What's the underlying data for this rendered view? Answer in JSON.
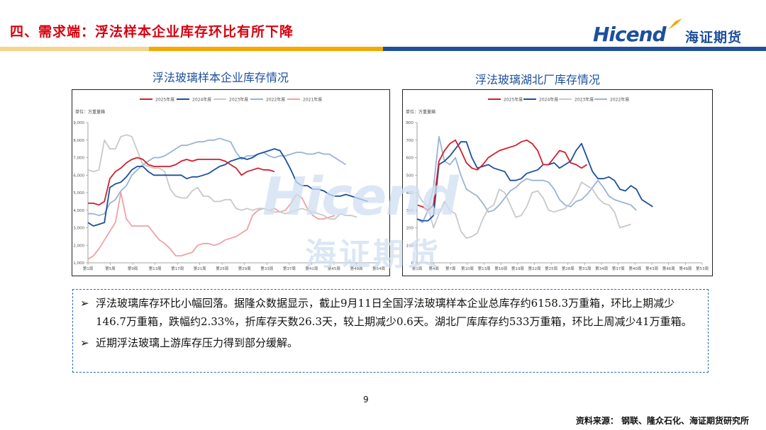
{
  "header": {
    "title": "四、需求端：浮法样本企业库存环比有所下降",
    "logo_en": "Hicend",
    "logo_cn": "海证期货"
  },
  "colors": {
    "brand_blue": "#1d4f9c",
    "title_red": "#d7000f",
    "accent_orange": "#f5a800"
  },
  "watermark": {
    "en": "Hicend",
    "cn": "海证期货"
  },
  "chart_data": [
    {
      "type": "line",
      "title": "浮法玻璃样本企业库存情况",
      "unit": "单位：万重量箱",
      "ylim": [
        1000,
        9000
      ],
      "yticks": [
        "1,000",
        "2,000",
        "3,000",
        "4,000",
        "5,000",
        "6,000",
        "7,000",
        "8,000",
        "9,000"
      ],
      "xticks": [
        "第1周",
        "第5周",
        "第9周",
        "第13周",
        "第17周",
        "第21周",
        "第25周",
        "第29周",
        "第33周",
        "第37周",
        "第41周",
        "第45周",
        "第49周",
        "第54周"
      ],
      "series": [
        {
          "name": "2025年度",
          "color": "#d11f2c",
          "values": [
            4400,
            4400,
            4300,
            4500,
            5800,
            6200,
            6400,
            6700,
            6900,
            7000,
            6900,
            6600,
            6500,
            6500,
            6500,
            6500,
            6600,
            6800,
            6900,
            6800,
            6900,
            6900,
            6900,
            6900,
            6900,
            6800,
            6600,
            6400,
            6000,
            6200,
            6300,
            6400,
            6300,
            6300,
            6200
          ]
        },
        {
          "name": "2024年度",
          "color": "#1d4f9c",
          "values": [
            3300,
            3100,
            3200,
            3300,
            5300,
            5500,
            5600,
            5900,
            6300,
            6500,
            6500,
            6200,
            6000,
            6000,
            6000,
            6000,
            6000,
            6000,
            5800,
            5900,
            5900,
            6000,
            6100,
            6300,
            6500,
            6600,
            6800,
            6900,
            7000,
            6900,
            7000,
            7200,
            7300,
            7400,
            7500,
            7400,
            6900,
            6300,
            5600,
            5400,
            5400,
            5200,
            5200,
            5100,
            4900,
            4800,
            4800,
            4900,
            4800,
            4700,
            4600,
            4500
          ]
        },
        {
          "name": "2023年度",
          "color": "#c8c8c8",
          "values": [
            6300,
            6200,
            6300,
            8000,
            7500,
            7500,
            8200,
            8300,
            8200,
            7400,
            6600,
            6500,
            6400,
            6400,
            6200,
            5200,
            4800,
            4700,
            4700,
            5100,
            5300,
            4800,
            4800,
            4500,
            4500,
            4600,
            4600,
            4100,
            4000,
            4100,
            4000,
            4100,
            4100,
            4000,
            3900,
            3900,
            3800,
            3900,
            4000,
            4100,
            4000,
            3900,
            3800,
            3700,
            3500,
            3500,
            3800,
            3700,
            3700,
            3600
          ]
        },
        {
          "name": "2022年度",
          "color": "#9ab3d6",
          "values": [
            3800,
            3800,
            3700,
            3800,
            4400,
            4600,
            5100,
            5400,
            6000,
            6300,
            6600,
            6800,
            7000,
            7000,
            7100,
            7300,
            7500,
            7700,
            7700,
            7800,
            7900,
            7900,
            8000,
            8000,
            8100,
            8000,
            7900,
            7300,
            6900,
            7100,
            7100,
            7200,
            7300,
            7100,
            7000,
            7100,
            7100,
            7200,
            7300,
            7300,
            7200,
            7200,
            7300,
            7200,
            7200,
            7000,
            6800,
            6600
          ]
        },
        {
          "name": "2021年度",
          "color": "#f2a0a4",
          "values": [
            1200,
            1400,
            1800,
            2300,
            2800,
            3300,
            5000,
            3500,
            3100,
            3100,
            3100,
            3100,
            2700,
            2300,
            2100,
            1800,
            1400,
            1400,
            1500,
            1600,
            2000,
            2100,
            2100,
            2000,
            2100,
            2300,
            2400,
            2500,
            2700,
            2900,
            3700,
            4000,
            4100,
            4000,
            4100,
            3900,
            4000,
            4400,
            4900,
            4700,
            4100,
            3700,
            3500,
            3500,
            3600,
            3700
          ]
        }
      ]
    },
    {
      "type": "line",
      "title": "浮法玻璃湖北厂库存情况",
      "unit": "单位：万重量箱",
      "ylim": [
        0,
        800
      ],
      "yticks": [
        "0",
        "100",
        "200",
        "300",
        "400",
        "500",
        "600",
        "700",
        "800"
      ],
      "xticks": [
        "第1周",
        "第4周",
        "第7周",
        "第10周",
        "第13周",
        "第16周",
        "第19周",
        "第22周",
        "第25周",
        "第28周",
        "第31周",
        "第34周",
        "第37周",
        "第40周",
        "第43周",
        "第46周",
        "第49周",
        "第53周"
      ],
      "series": [
        {
          "name": "2025年度",
          "color": "#d11f2c",
          "values": [
            330,
            320,
            300,
            330,
            580,
            640,
            680,
            700,
            640,
            570,
            540,
            530,
            560,
            600,
            620,
            640,
            650,
            660,
            670,
            690,
            700,
            680,
            640,
            560,
            560,
            600,
            640,
            630,
            570,
            560,
            540,
            560
          ]
        },
        {
          "name": "2024年度",
          "color": "#1d4f9c",
          "values": [
            250,
            240,
            240,
            270,
            560,
            580,
            610,
            650,
            690,
            690,
            600,
            540,
            550,
            560,
            540,
            530,
            520,
            470,
            470,
            480,
            510,
            520,
            530,
            560,
            560,
            570,
            540,
            560,
            580,
            640,
            680,
            600,
            520,
            480,
            480,
            490,
            470,
            420,
            410,
            440,
            420,
            360,
            340,
            320
          ]
        },
        {
          "name": "2023年度",
          "color": "#c8c8c8",
          "values": [
            400,
            350,
            320,
            200,
            280,
            350,
            300,
            280,
            180,
            140,
            150,
            170,
            250,
            310,
            330,
            420,
            400,
            330,
            260,
            270,
            320,
            400,
            410,
            370,
            300,
            290,
            300,
            310,
            340,
            390,
            460,
            440,
            420,
            370,
            340,
            330,
            290,
            200,
            210,
            220
          ]
        },
        {
          "name": "2022年度",
          "color": "#9ab3d6",
          "values": [
            250,
            230,
            300,
            430,
            720,
            580,
            560,
            600,
            500,
            420,
            400,
            380,
            340,
            290,
            300,
            330,
            370,
            410,
            430,
            460,
            480,
            470,
            470,
            470,
            460,
            420,
            360,
            330,
            320,
            350,
            360,
            390,
            430,
            470,
            430,
            380,
            360,
            350,
            340,
            330,
            300
          ]
        }
      ]
    }
  ],
  "textbox": {
    "bullets": [
      "浮法玻璃库存环比小幅回落。据隆众数据显示，截止9月11日全国浮法玻璃样本企业总库存约6158.3万重箱，环比上期减少146.7万重箱，跌幅约2.33%，折库存天数26.3天，较上期减少0.6天。湖北厂库库存约533万重箱，环比上周减少41万重箱。",
      "近期浮法玻璃上游库存压力得到部分缓解。"
    ]
  },
  "footer": {
    "page_number": "9",
    "source": "资料来源：  钢联、隆众石化、海证期货研究所"
  }
}
